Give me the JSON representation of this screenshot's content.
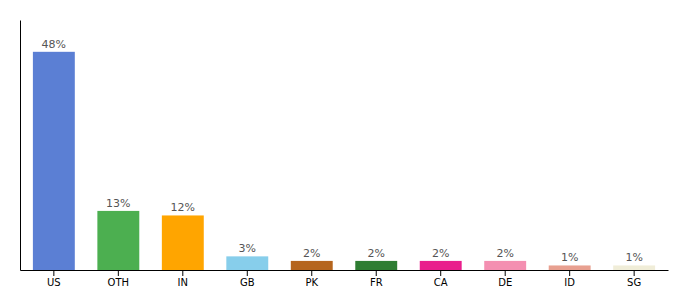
{
  "chart_data": {
    "type": "bar",
    "categories": [
      "US",
      "OTH",
      "IN",
      "GB",
      "PK",
      "FR",
      "CA",
      "DE",
      "ID",
      "SG"
    ],
    "values": [
      48,
      13,
      12,
      3,
      2,
      2,
      2,
      2,
      1,
      1
    ],
    "value_labels": [
      "48%",
      "13%",
      "12%",
      "3%",
      "2%",
      "2%",
      "2%",
      "2%",
      "1%",
      "1%"
    ],
    "colors": [
      "#5b7fd4",
      "#4caf50",
      "#ffa500",
      "#87ceeb",
      "#b5651d",
      "#2e7d32",
      "#e91e8c",
      "#f48fb1",
      "#e8a090",
      "#f0edd8"
    ],
    "data_labels": true,
    "ylim": [
      0,
      55
    ],
    "grid": false,
    "tick_labels": "x"
  }
}
